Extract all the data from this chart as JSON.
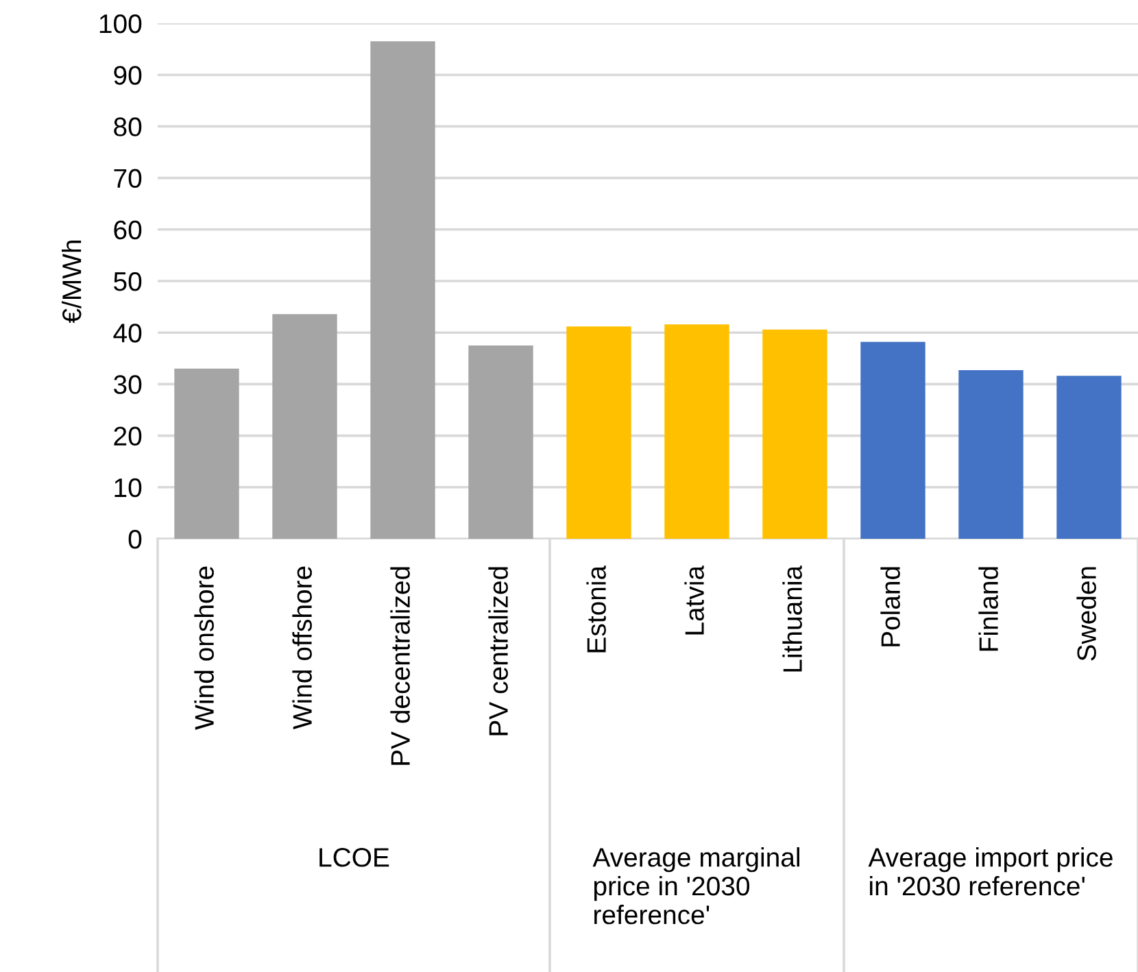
{
  "chart_data": {
    "type": "bar",
    "ylabel": "€/MWh",
    "categories": [
      "Wind onshore",
      "Wind offshore",
      "PV decentralized",
      "PV centralized",
      "Estonia",
      "Latvia",
      "Lithuania",
      "Poland",
      "Finland",
      "Sweden"
    ],
    "values": [
      33,
      43.6,
      96.5,
      37.5,
      41.2,
      41.6,
      40.6,
      38.2,
      32.7,
      31.6
    ],
    "colors": [
      "#a5a5a5",
      "#a5a5a5",
      "#a5a5a5",
      "#a5a5a5",
      "#ffc000",
      "#ffc000",
      "#ffc000",
      "#4472c4",
      "#4472c4",
      "#4472c4"
    ],
    "annotations": [
      "LCOE",
      "Average marginal price in '2030 reference'",
      "Average import price in '2030 reference'"
    ],
    "ylim": [
      0,
      100
    ],
    "yticks": [
      0,
      10,
      20,
      30,
      40,
      50,
      60,
      70,
      80,
      90,
      100
    ],
    "grid": "y"
  }
}
